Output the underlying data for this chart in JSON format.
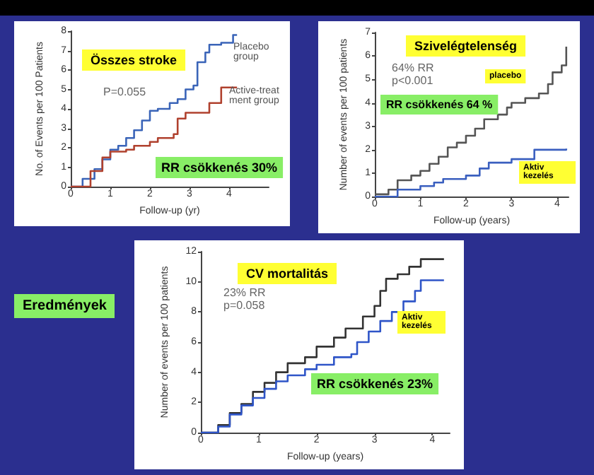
{
  "chart_data": [
    {
      "type": "step",
      "title": "Összes stroke",
      "xlabel": "Follow-up (yr)",
      "ylabel": "No. of Events per 100 Patients",
      "xlim": [
        0,
        5
      ],
      "xticks": [
        0,
        1,
        2,
        3,
        4
      ],
      "ylim": [
        0,
        8
      ],
      "yticks": [
        0,
        1,
        2,
        3,
        4,
        5,
        6,
        7,
        8
      ],
      "grid": false,
      "legend": false,
      "marker": "none",
      "line_style": "solid",
      "annotations": [
        "P=0.055",
        "RR csökkenés 30%"
      ],
      "series": [
        {
          "name": "Placebo group",
          "color": "#3a64b8",
          "x": [
            0,
            0.3,
            0.6,
            0.8,
            1.0,
            1.2,
            1.4,
            1.6,
            1.8,
            2.0,
            2.2,
            2.5,
            2.7,
            2.9,
            3.1,
            3.2,
            3.4,
            3.5,
            3.8,
            4.1,
            4.2
          ],
          "values": [
            0,
            0.4,
            0.9,
            1.4,
            1.9,
            2.1,
            2.5,
            2.9,
            3.4,
            3.9,
            4.0,
            4.3,
            4.5,
            5.0,
            5.2,
            6.4,
            6.9,
            7.3,
            7.4,
            7.8,
            7.8
          ]
        },
        {
          "name": "Active-treatment group",
          "color": "#b0412e",
          "x": [
            0,
            0.5,
            0.8,
            1.0,
            1.4,
            1.6,
            2.0,
            2.2,
            2.6,
            2.7,
            2.9,
            3.4,
            3.5,
            3.7,
            3.8,
            4.2
          ],
          "values": [
            0,
            0.8,
            1.5,
            1.8,
            1.9,
            2.1,
            2.3,
            2.5,
            2.7,
            3.5,
            3.8,
            3.8,
            4.3,
            4.3,
            5.1,
            5.1
          ]
        }
      ]
    },
    {
      "type": "step",
      "title": "Szivelégtelenség",
      "xlabel": "Follow-up (years)",
      "ylabel": "Number of events per 100 patients",
      "xlim": [
        0,
        4.25
      ],
      "xticks": [
        0,
        1,
        2,
        3,
        4
      ],
      "ylim": [
        0,
        7
      ],
      "yticks": [
        0,
        1,
        2,
        3,
        4,
        5,
        6,
        7
      ],
      "grid": false,
      "legend": false,
      "marker": "none",
      "line_style": "solid",
      "annotations": [
        "64% RR",
        "p<0.001",
        "RR csökkenés 64 %"
      ],
      "series": [
        {
          "name": "placebo",
          "color": "#555555",
          "x": [
            0,
            0.3,
            0.5,
            0.8,
            1.0,
            1.2,
            1.4,
            1.6,
            1.8,
            2.0,
            2.2,
            2.4,
            2.7,
            2.9,
            3.0,
            3.3,
            3.6,
            3.8,
            3.9,
            4.1,
            4.2
          ],
          "values": [
            0.1,
            0.3,
            0.7,
            0.9,
            1.1,
            1.4,
            1.7,
            2.1,
            2.3,
            2.6,
            2.9,
            3.3,
            3.5,
            3.8,
            4.0,
            4.2,
            4.4,
            4.8,
            5.3,
            5.6,
            6.4
          ]
        },
        {
          "name": "Aktiv kezelés",
          "color": "#3a5fbf",
          "x": [
            0,
            0.5,
            1.0,
            1.3,
            1.5,
            2.0,
            2.3,
            2.5,
            3.0,
            3.5,
            4.2
          ],
          "values": [
            0,
            0.3,
            0.45,
            0.6,
            0.75,
            0.9,
            1.2,
            1.45,
            1.6,
            2.0,
            2.05
          ]
        }
      ]
    },
    {
      "type": "step",
      "title": "CV mortalitás",
      "xlabel": "Follow-up (years)",
      "ylabel": "Number of events per 100 patients",
      "xlim": [
        0,
        4.3
      ],
      "xticks": [
        0,
        1,
        2,
        3,
        4
      ],
      "ylim": [
        0,
        12
      ],
      "yticks": [
        0,
        2,
        4,
        6,
        8,
        10,
        12
      ],
      "grid": false,
      "legend": false,
      "marker": "none",
      "line_style": "solid",
      "annotations": [
        "23% RR",
        "p=0.058",
        "RR csökkenés 23%"
      ],
      "series": [
        {
          "color": "#333333",
          "x": [
            0,
            0.3,
            0.5,
            0.7,
            0.9,
            1.1,
            1.3,
            1.5,
            1.8,
            2.0,
            2.3,
            2.5,
            2.8,
            3.0,
            3.1,
            3.2,
            3.4,
            3.6,
            3.8,
            4.2
          ],
          "values": [
            0,
            0.5,
            1.3,
            1.9,
            2.7,
            3.3,
            4.0,
            4.6,
            5.0,
            5.7,
            6.3,
            6.9,
            7.7,
            8.4,
            9.4,
            10.2,
            10.5,
            11.0,
            11.5,
            11.5
          ]
        },
        {
          "name": "Aktiv kezelés",
          "color": "#2f55c8",
          "x": [
            0,
            0.3,
            0.5,
            0.7,
            0.9,
            1.1,
            1.3,
            1.5,
            1.8,
            2.0,
            2.3,
            2.6,
            2.7,
            2.9,
            3.1,
            3.3,
            3.5,
            3.7,
            3.8,
            4.2
          ],
          "values": [
            0,
            0.4,
            1.2,
            1.8,
            2.3,
            2.9,
            3.4,
            3.8,
            4.2,
            4.5,
            5.0,
            5.2,
            6.0,
            6.7,
            7.4,
            8.0,
            8.7,
            9.4,
            10.1,
            10.1
          ]
        }
      ]
    },
    {
      "type": "other",
      "title": "Eredmények"
    }
  ]
}
